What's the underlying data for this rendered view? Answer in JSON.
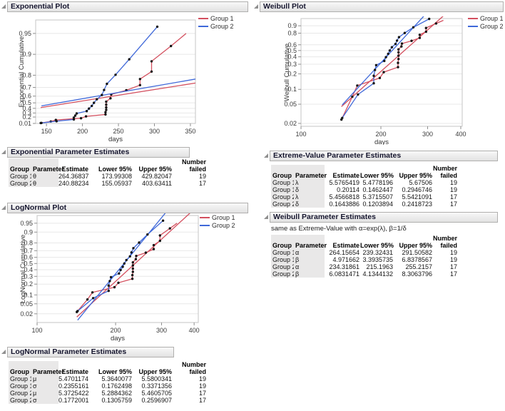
{
  "colors": {
    "group1": "#d34f5e",
    "group2": "#3f68d9",
    "dot": "#141414",
    "grid": "#e8e8e8",
    "frame": "#c6c6c6",
    "tick": "#8f8f8f",
    "axis_text": "#3a3a3a",
    "label_col_bg": "#e9e8e8"
  },
  "chart_data": {
    "type": "line",
    "groups": [
      {
        "name": "Group 1",
        "color": "#d34f5e",
        "fit_start": 142,
        "points": [
          [
            142,
            0.024
          ],
          [
            156,
            0.071
          ],
          [
            163,
            0.119
          ],
          [
            198,
            0.167
          ],
          [
            205,
            0.216
          ],
          [
            232,
            0.266
          ],
          [
            232,
            0.317
          ],
          [
            233,
            0.368
          ],
          [
            233,
            0.418
          ],
          [
            233,
            0.469
          ],
          [
            233,
            0.519
          ],
          [
            239,
            0.57
          ],
          [
            240,
            0.621
          ],
          [
            261,
            0.671
          ],
          [
            280,
            0.722
          ],
          [
            280,
            0.773
          ],
          [
            296,
            0.823
          ],
          [
            296,
            0.874
          ],
          [
            323,
            0.924
          ]
        ],
        "curve_extension": [
          [
            344,
            0.95
          ]
        ],
        "fits": {
          "exponential": {
            "theta": 264.36837
          },
          "lognormal": {
            "mu": 5.4701174,
            "sigma": 0.2355161
          },
          "weibull": {
            "alpha": 264.15654,
            "beta": 4.971662
          }
        }
      },
      {
        "name": "Group 2",
        "color": "#3f68d9",
        "fit_start": 143,
        "points": [
          [
            143,
            0.026
          ],
          [
            164,
            0.079
          ],
          [
            188,
            0.132
          ],
          [
            188,
            0.184
          ],
          [
            190,
            0.237
          ],
          [
            192,
            0.289
          ],
          [
            206,
            0.342
          ],
          [
            209,
            0.395
          ],
          [
            213,
            0.447
          ],
          [
            216,
            0.5
          ],
          [
            220,
            0.556
          ],
          [
            227,
            0.615
          ],
          [
            230,
            0.674
          ],
          [
            234,
            0.734
          ],
          [
            246,
            0.803
          ],
          [
            265,
            0.882
          ],
          [
            304,
            0.96
          ]
        ],
        "curve_extension": [],
        "fits": {
          "exponential": {
            "theta": 240.88234
          },
          "lognormal": {
            "mu": 5.3725422,
            "sigma": 0.1772001
          },
          "weibull": {
            "alpha": 234.31861,
            "beta": 6.0831471
          }
        }
      }
    ],
    "plots": [
      {
        "id": "exponential",
        "title": "Exponential Plot",
        "xlabel": "days",
        "ylabel": "Exponential Cumulative",
        "xscale": "linear",
        "xdomain": [
          135,
          357
        ],
        "xticks": [
          150,
          200,
          250,
          300,
          350
        ],
        "yscale": "exponential",
        "ydomain": [
          0.01,
          0.968
        ],
        "yticks": [
          0.95,
          0.9,
          0.8,
          0.7,
          0.6,
          0.5,
          0.4,
          0.3,
          0.2,
          0.01
        ],
        "grid": "horizontal",
        "legend_position": "top-right"
      },
      {
        "id": "weibull",
        "title": "Weibull Plot",
        "xlabel": "days",
        "ylabel": "Weibull Cumulative",
        "xscale": "log",
        "xdomain": [
          100,
          405
        ],
        "xticks": [
          100,
          200,
          300,
          400
        ],
        "yscale": "weibull",
        "ydomain": [
          0.0174,
          0.962
        ],
        "yticks": [
          0.9,
          0.8,
          0.6,
          0.5,
          0.4,
          0.3,
          0.2,
          0.1,
          0.05,
          0.02
        ],
        "grid": "horizontal",
        "legend_position": "top-right"
      },
      {
        "id": "lognormal",
        "title": "LogNormal Plot",
        "xlabel": "days",
        "ylabel": "LogNormal Cumulative",
        "xscale": "log",
        "xdomain": [
          100,
          415
        ],
        "xticks": [
          100,
          200,
          300,
          400
        ],
        "yscale": "probit",
        "ydomain": [
          0.008,
          0.975
        ],
        "yticks": [
          0.95,
          0.9,
          0.8,
          0.7,
          0.6,
          0.5,
          0.4,
          0.3,
          0.2,
          0.1,
          0.05,
          0.02
        ],
        "grid": "horizontal",
        "legend_position": "top-right"
      }
    ]
  },
  "legend_labels": [
    "Group 1",
    "Group 2"
  ],
  "tables": {
    "columns": [
      {
        "label": "Group",
        "align": "left"
      },
      {
        "label": "Parameter",
        "align": "left"
      },
      {
        "label": "Estimate",
        "align": "right"
      },
      {
        "label": "Lower 95%",
        "align": "right"
      },
      {
        "label": "Upper 95%",
        "align": "right"
      },
      {
        "label": "Number failed",
        "align": "right",
        "two_line": [
          "Number",
          "failed"
        ]
      }
    ],
    "exponential": {
      "title": "Exponential Parameter Estimates",
      "rows": [
        [
          "Group 1",
          "θ",
          "264.36837",
          "173.99308",
          "429.82047",
          "19"
        ],
        [
          "Group 2",
          "θ",
          "240.88234",
          "155.05937",
          "403.63411",
          "17"
        ]
      ]
    },
    "extreme_value": {
      "title": "Extreme-Value Parameter Estimates",
      "rows": [
        [
          "Group 1",
          "λ",
          "5.5765419",
          "5.4778196",
          "5.67506",
          "19"
        ],
        [
          "Group 1",
          "δ",
          "0.20114",
          "0.1462447",
          "0.2946746",
          "19"
        ],
        [
          "Group 2",
          "λ",
          "5.4566818",
          "5.3715507",
          "5.5421091",
          "17"
        ],
        [
          "Group 2",
          "δ",
          "0.1643886",
          "0.1203894",
          "0.2418723",
          "17"
        ]
      ]
    },
    "weibull": {
      "title": "Weibull Parameter Estimates",
      "note": "same as Extreme-Value with α=exp(λ), β=1/δ",
      "rows": [
        [
          "Group 1",
          "α",
          "264.15654",
          "239.32431",
          "291.50582",
          "19"
        ],
        [
          "Group 1",
          "β",
          "4.971662",
          "3.3935735",
          "6.8378567",
          "19"
        ],
        [
          "Group 2",
          "α",
          "234.31861",
          "215.1963",
          "255.2157",
          "17"
        ],
        [
          "Group 2",
          "β",
          "6.0831471",
          "4.1344132",
          "8.3063796",
          "17"
        ]
      ]
    },
    "lognormal": {
      "title": "LogNormal Parameter Estimates",
      "rows": [
        [
          "Group 1",
          "μ",
          "5.4701174",
          "5.3640077",
          "5.5800341",
          "19"
        ],
        [
          "Group 1",
          "σ",
          "0.2355161",
          "0.1762498",
          "0.3371356",
          "19"
        ],
        [
          "Group 2",
          "μ",
          "5.3725422",
          "5.2884362",
          "5.4605705",
          "17"
        ],
        [
          "Group 2",
          "σ",
          "0.1772001",
          "0.1305759",
          "0.2596907",
          "17"
        ]
      ]
    }
  }
}
